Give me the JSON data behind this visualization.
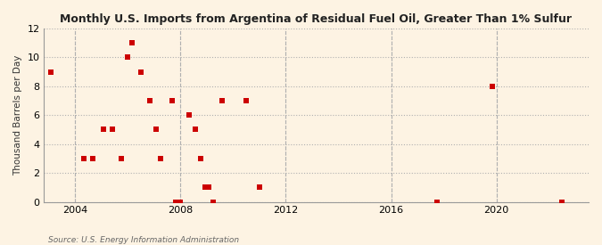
{
  "title": "Monthly U.S. Imports from Argentina of Residual Fuel Oil, Greater Than 1% Sulfur",
  "ylabel": "Thousand Barrels per Day",
  "source": "Source: U.S. Energy Information Administration",
  "bg_color": "#fdf3e3",
  "plot_bg_color": "#fdf3e3",
  "marker_color": "#cc0000",
  "grid_color": "#b0b0b0",
  "xlim": [
    2002.8,
    2023.5
  ],
  "ylim": [
    0,
    12
  ],
  "yticks": [
    0,
    2,
    4,
    6,
    8,
    10,
    12
  ],
  "xticks": [
    2004,
    2008,
    2012,
    2016,
    2020
  ],
  "data_x": [
    2003.08,
    2004.33,
    2004.67,
    2005.08,
    2005.42,
    2005.75,
    2006.0,
    2006.17,
    2006.5,
    2006.83,
    2007.08,
    2007.25,
    2007.67,
    2007.83,
    2008.0,
    2008.33,
    2008.58,
    2008.75,
    2008.92,
    2009.08,
    2009.25,
    2009.58,
    2010.5,
    2011.0,
    2017.75,
    2019.83,
    2022.5
  ],
  "data_y": [
    9,
    3,
    3,
    5,
    5,
    3,
    10,
    11,
    9,
    7,
    5,
    3,
    7,
    0,
    0,
    6,
    5,
    3,
    1,
    1,
    0,
    7,
    7,
    1,
    0,
    8,
    0
  ]
}
